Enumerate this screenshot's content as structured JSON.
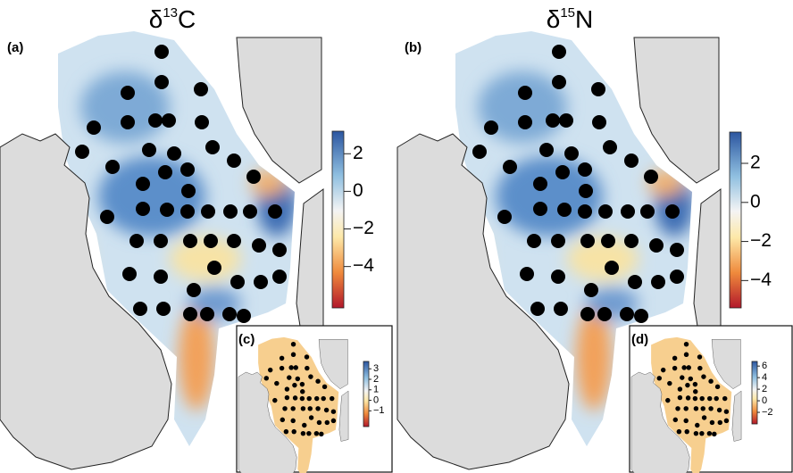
{
  "panels": [
    {
      "label": "(a)",
      "title": {
        "symbol": "δ",
        "superscript": "13",
        "element": "C"
      },
      "colorbar": {
        "lim": [
          -6.2,
          3.2
        ],
        "ticks": [
          2,
          0,
          {
            "value": -2,
            "label": "−2"
          },
          {
            "value": -4,
            "label": "−4"
          }
        ]
      },
      "inset": {
        "label": "(c)",
        "colorbar": {
          "lim": [
            -2.5,
            3.7
          ],
          "ticks": [
            3,
            2,
            1,
            0,
            {
              "value": -1,
              "label": "−1"
            }
          ]
        }
      }
    },
    {
      "label": "(b)",
      "title": {
        "symbol": "δ",
        "superscript": "15",
        "element": "N"
      },
      "colorbar": {
        "lim": [
          -5.4,
          3.6
        ],
        "ticks": [
          2,
          0,
          {
            "value": -2,
            "label": "−2"
          },
          {
            "value": -4,
            "label": "−4"
          }
        ]
      },
      "inset": {
        "label": "(d)",
        "colorbar": {
          "lim": [
            -4,
            6.8
          ],
          "ticks": [
            6,
            4,
            2,
            0,
            {
              "value": -2,
              "label": "−2"
            }
          ]
        }
      }
    }
  ]
}
